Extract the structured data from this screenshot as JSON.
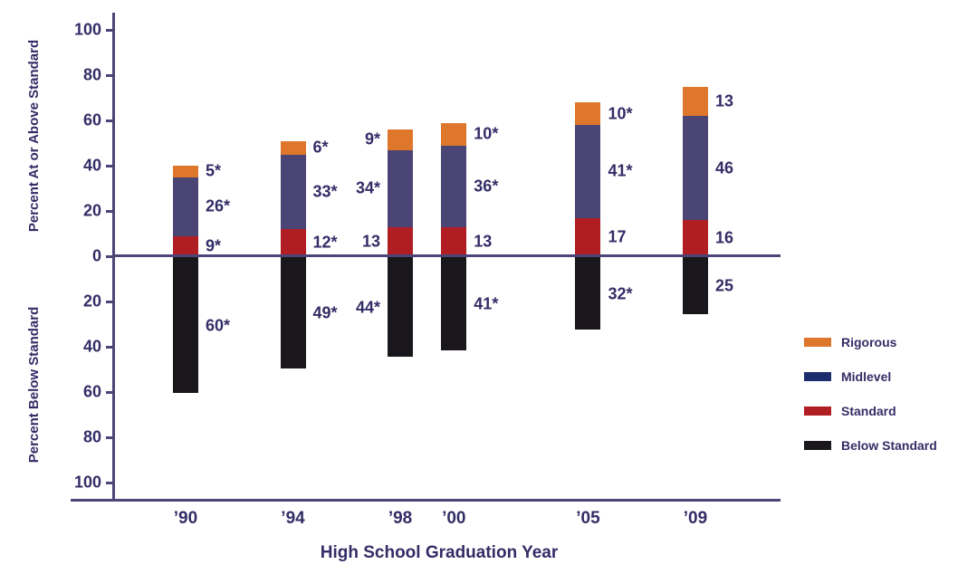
{
  "chart_data": {
    "type": "bar",
    "stacked": true,
    "orientation": "diverging-vertical",
    "title": "",
    "xlabel": "High School Graduation Year",
    "ylabel_top": "Percent At or Above Standard",
    "ylabel_bottom": "Percent Below Standard",
    "ylim": [
      0,
      100
    ],
    "grid": false,
    "y_ticks_top": [
      100,
      80,
      60,
      40,
      20,
      0
    ],
    "y_ticks_bottom": [
      20,
      40,
      60,
      80,
      100
    ],
    "categories": [
      "’90",
      "’94",
      "’98",
      "’00",
      "’05",
      "’09"
    ],
    "category_years": [
      1990,
      1994,
      1998,
      2000,
      2005,
      2009
    ],
    "label_side": [
      "right",
      "right",
      "left",
      "right",
      "right",
      "right"
    ],
    "series_above": [
      {
        "name": "Standard",
        "color": "#b01e24",
        "values": [
          9,
          12,
          13,
          13,
          17,
          16
        ],
        "labels": [
          "9*",
          "12*",
          "13",
          "13",
          "17",
          "16"
        ]
      },
      {
        "name": "Midlevel",
        "color": "#4a4574",
        "values": [
          26,
          33,
          34,
          36,
          41,
          46
        ],
        "labels": [
          "26*",
          "33*",
          "34*",
          "36*",
          "41*",
          "46"
        ]
      },
      {
        "name": "Rigorous",
        "color": "#de772c",
        "values": [
          5,
          6,
          9,
          10,
          10,
          13
        ],
        "labels": [
          "5*",
          "6*",
          "9*",
          "10*",
          "10*",
          "13"
        ]
      }
    ],
    "series_below": [
      {
        "name": "Below Standard",
        "color": "#1a171c",
        "values": [
          60,
          49,
          44,
          41,
          32,
          25
        ],
        "labels": [
          "60*",
          "49*",
          "44*",
          "41*",
          "32*",
          "25"
        ]
      }
    ],
    "legend": [
      {
        "label": "Rigorous",
        "color": "#de772c"
      },
      {
        "label": "Midlevel",
        "color": "#1d2e6e"
      },
      {
        "label": "Standard",
        "color": "#b01e24"
      },
      {
        "label": "Below Standard",
        "color": "#1a171c"
      }
    ],
    "legend_position": "right",
    "footnote_marker": "*"
  },
  "styles": {
    "axis_color": "#4b4578",
    "text_color": "#332d66"
  }
}
